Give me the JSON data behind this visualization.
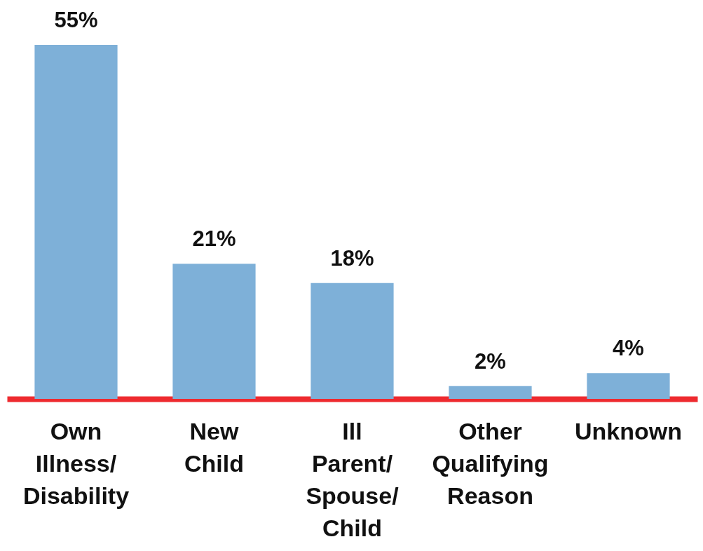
{
  "chart_data": {
    "type": "bar",
    "categories": [
      "Own Illness/Disability",
      "New Child",
      "Ill Parent/Spouse/Child",
      "Other Qualifying Reason",
      "Unknown"
    ],
    "values": [
      55,
      21,
      18,
      2,
      4
    ],
    "value_labels": [
      "55%",
      "21%",
      "18%",
      "2%",
      "4%"
    ],
    "color": "#7eb0d8"
  }
}
